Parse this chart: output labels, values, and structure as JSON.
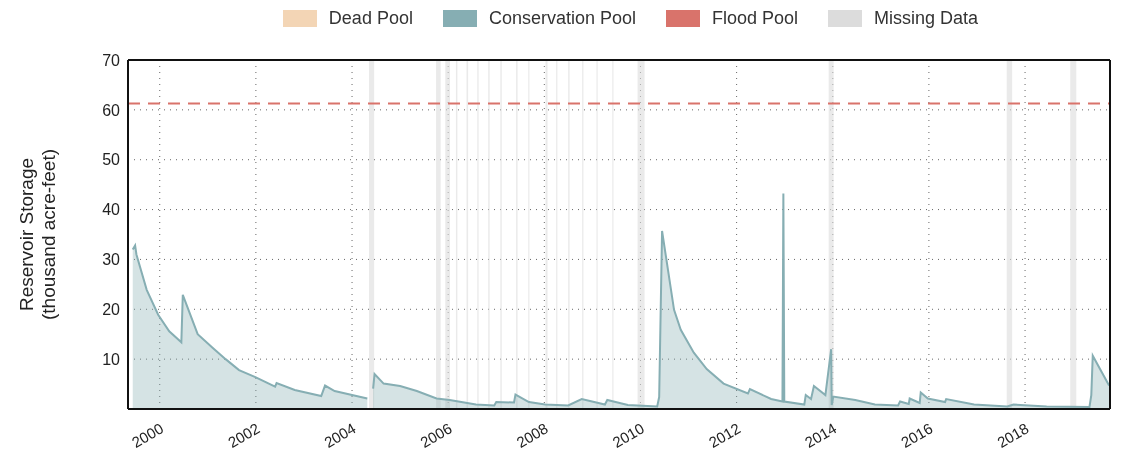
{
  "chart_data": {
    "type": "area",
    "ylabel": "Reservoir Storage\n(thousand acre-feet)",
    "xlim": [
      "1999-05-05",
      "2019-10-08"
    ],
    "xticks": [
      "2000",
      "2002",
      "2004",
      "2006",
      "2008",
      "2010",
      "2012",
      "2014",
      "2016",
      "2018"
    ],
    "ylim": [
      0,
      70
    ],
    "yticks": [
      10,
      20,
      30,
      40,
      50,
      60,
      70
    ],
    "annotations": [
      "Dead Pool"
    ],
    "grid": true,
    "legend": "top",
    "tick_labels": "xy",
    "series": [
      {
        "name": "Conservation Pool",
        "color": "#86aeb3",
        "x": [
          "1999-06-10",
          "1999-06-28",
          "1999-07-08",
          "1999-09-24",
          "1999-12-20",
          "2000-03-14",
          "2000-06-14",
          "2000-06-25",
          "2000-10-16",
          "2001-02-06",
          "2001-05-16",
          "2001-08-26",
          "2001-12-28",
          "2002-05-27",
          "2002-06-07",
          "2002-10-23",
          "2003-05-12",
          "2003-06-10",
          "2003-08-22",
          "2004-04-27",
          "2004-05-20",
          "2004-06-10",
          "2004-06-21",
          "2004-08-29",
          "2005-01-01",
          "2005-05-08",
          "2005-10-05",
          "2006-01-12",
          "2006-07-31",
          "2006-12-17",
          "2007-01-01",
          "2007-05-16",
          "2007-05-27",
          "2007-09-06",
          "2008-01-08",
          "2008-07-01",
          "2008-10-12",
          "2009-04-06",
          "2009-04-24",
          "2009-09-27",
          "2010-05-08",
          "2010-05-23",
          "2010-06-14",
          "2010-09-13",
          "2010-11-03",
          "2011-02-10",
          "2011-05-19",
          "2011-09-24",
          "2012-03-28",
          "2012-04-12",
          "2012-09-20",
          "2012-12-15",
          "2012-12-22",
          "2012-12-29",
          "2013-05-30",
          "2013-06-10",
          "2013-07-20",
          "2013-08-11",
          "2013-11-06",
          "2013-12-20",
          "2013-12-24",
          "2014-01-05",
          "2014-06-21",
          "2014-11-17",
          "2015-05-12",
          "2015-05-27",
          "2015-08-01",
          "2015-08-08",
          "2015-10-23",
          "2015-10-31",
          "2015-12-24",
          "2016-05-04",
          "2016-05-12",
          "2016-12-10",
          "2017-08-19",
          "2017-10-05",
          "2018-06-14",
          "2019-05-05",
          "2019-05-19",
          "2019-05-30",
          "2019-10-01"
        ],
        "values": [
          32.0,
          32.8,
          31.0,
          23.9,
          18.9,
          15.6,
          13.4,
          22.9,
          15.0,
          12.3,
          10.0,
          7.8,
          6.4,
          4.5,
          5.2,
          3.8,
          2.6,
          4.7,
          3.6,
          2.1,
          null,
          4.1,
          7.0,
          5.1,
          4.6,
          3.6,
          2.1,
          1.8,
          0.9,
          0.7,
          1.4,
          1.3,
          2.9,
          1.4,
          0.9,
          0.7,
          2.0,
          0.9,
          1.8,
          0.8,
          0.5,
          2.4,
          35.7,
          19.9,
          15.9,
          11.3,
          8.0,
          5.1,
          3.1,
          4.0,
          2.0,
          1.5,
          43.2,
          1.5,
          0.9,
          2.8,
          2.0,
          4.6,
          2.8,
          12.0,
          0.8,
          2.5,
          1.8,
          0.9,
          0.7,
          1.5,
          1.0,
          2.1,
          1.2,
          3.3,
          2.1,
          1.4,
          2.0,
          0.9,
          0.5,
          0.9,
          0.5,
          0.4,
          2.8,
          10.7,
          4.7
        ]
      }
    ],
    "ref_lines": [
      {
        "axis": "y",
        "value": 61.3,
        "label": "Flood Pool",
        "color": "#d9736b",
        "line_style": "dashed"
      }
    ],
    "bands": [
      {
        "axis": "x",
        "from": "2004-05-10",
        "to": "2004-06-18",
        "label": "Missing Data",
        "color": "#dcdcdc"
      },
      {
        "axis": "x",
        "from": "2005-10-01",
        "to": "2005-11-05",
        "color": "#dcdcdc"
      },
      {
        "axis": "x",
        "from": "2005-12-10",
        "to": "2006-01-15",
        "color": "#dcdcdc"
      },
      {
        "axis": "x",
        "from": "2006-03-01",
        "to": "2006-03-12",
        "color": "#dcdcdc"
      },
      {
        "axis": "x",
        "from": "2006-05-20",
        "to": "2006-06-01",
        "color": "#dcdcdc"
      },
      {
        "axis": "x",
        "from": "2006-08-10",
        "to": "2006-08-20",
        "color": "#dcdcdc"
      },
      {
        "axis": "x",
        "from": "2006-11-01",
        "to": "2006-11-12",
        "color": "#dcdcdc"
      },
      {
        "axis": "x",
        "from": "2007-02-01",
        "to": "2007-02-12",
        "color": "#dcdcdc"
      },
      {
        "axis": "x",
        "from": "2007-06-01",
        "to": "2007-06-12",
        "color": "#dcdcdc"
      },
      {
        "axis": "x",
        "from": "2007-09-01",
        "to": "2007-09-10",
        "color": "#dcdcdc"
      },
      {
        "axis": "x",
        "from": "2008-01-10",
        "to": "2008-01-25",
        "color": "#dcdcdc"
      },
      {
        "axis": "x",
        "from": "2008-04-01",
        "to": "2008-04-10",
        "color": "#dcdcdc"
      },
      {
        "axis": "x",
        "from": "2008-07-01",
        "to": "2008-07-12",
        "color": "#dcdcdc"
      },
      {
        "axis": "x",
        "from": "2008-10-15",
        "to": "2008-10-25",
        "color": "#dcdcdc"
      },
      {
        "axis": "x",
        "from": "2009-02-01",
        "to": "2009-02-10",
        "color": "#dcdcdc"
      },
      {
        "axis": "x",
        "from": "2009-06-01",
        "to": "2009-06-10",
        "color": "#dcdcdc"
      },
      {
        "axis": "x",
        "from": "2009-12-10",
        "to": "2010-02-01",
        "color": "#dcdcdc"
      },
      {
        "axis": "x",
        "from": "2013-12-01",
        "to": "2014-01-08",
        "color": "#dcdcdc"
      },
      {
        "axis": "x",
        "from": "2017-08-15",
        "to": "2017-09-25",
        "color": "#dcdcdc"
      },
      {
        "axis": "x",
        "from": "2018-12-10",
        "to": "2019-01-25",
        "color": "#dcdcdc"
      }
    ]
  }
}
